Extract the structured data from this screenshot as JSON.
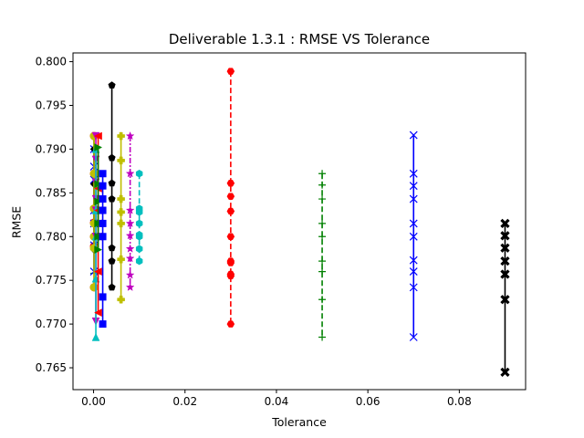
{
  "chart_data": {
    "type": "line",
    "title": "Deliverable 1.3.1 : RMSE VS Tolerance",
    "xlabel": "Tolerance",
    "ylabel": "RMSE",
    "xlim": [
      -0.0045,
      0.0945
    ],
    "ylim": [
      0.7625,
      0.801
    ],
    "xticks": [
      "0.00",
      "0.02",
      "0.04",
      "0.06",
      "0.08"
    ],
    "xtick_values": [
      0.0,
      0.02,
      0.04,
      0.06,
      0.08
    ],
    "yticks": [
      "0.765",
      "0.770",
      "0.775",
      "0.780",
      "0.785",
      "0.790",
      "0.795",
      "0.800"
    ],
    "ytick_values": [
      0.765,
      0.77,
      0.775,
      0.78,
      0.785,
      0.79,
      0.795,
      0.8
    ],
    "grid": false,
    "series": [
      {
        "x": 0.0001,
        "color": "#ff0000",
        "marker": "o",
        "dash": "",
        "values": [
          0.7915,
          0.7872,
          0.7832,
          0.7816,
          0.78,
          0.7789,
          0.7742
        ]
      },
      {
        "x": 0.0001,
        "color": "#008000",
        "marker": "+",
        "dash": "",
        "values": [
          0.7915,
          0.783,
          0.7815,
          0.78,
          0.7787,
          0.7758
        ]
      },
      {
        "x": 0.0001,
        "color": "#0000ff",
        "marker": "x",
        "dash": "",
        "values": [
          0.79,
          0.788,
          0.7865,
          0.783,
          0.7815,
          0.779,
          0.776
        ]
      },
      {
        "x": 0.0001,
        "color": "#000000",
        "marker": "D",
        "dash": "",
        "values": [
          0.79,
          0.786,
          0.783,
          0.78,
          0.7785
        ]
      },
      {
        "x": 0.0001,
        "color": "#bfbf00",
        "marker": "o",
        "dash": "",
        "values": [
          0.7915,
          0.7872,
          0.7832,
          0.7815,
          0.78,
          0.7787,
          0.7742
        ]
      },
      {
        "x": 0.0005,
        "color": "#bf00bf",
        "marker": "v",
        "dash": "",
        "values": [
          0.7915,
          0.7888,
          0.7862,
          0.7843,
          0.783,
          0.78,
          0.7703
        ]
      },
      {
        "x": 0.0005,
        "color": "#00bfbf",
        "marker": "^",
        "dash": "",
        "values": [
          0.79,
          0.783,
          0.78,
          0.7752,
          0.7685
        ]
      },
      {
        "x": 0.001,
        "color": "#ff0000",
        "marker": "<",
        "dash": "",
        "values": [
          0.7915,
          0.7855,
          0.783,
          0.7815,
          0.78,
          0.776,
          0.7713
        ]
      },
      {
        "x": 0.001,
        "color": "#008000",
        "marker": ">",
        "dash": "",
        "values": [
          0.7902,
          0.786,
          0.784,
          0.7815,
          0.78,
          0.7785
        ]
      },
      {
        "x": 0.002,
        "color": "#0000ff",
        "marker": "s",
        "dash": "",
        "values": [
          0.7872,
          0.7858,
          0.7843,
          0.783,
          0.7815,
          0.78,
          0.7731,
          0.77
        ]
      },
      {
        "x": 0.004,
        "color": "#000000",
        "marker": "p",
        "dash": "",
        "values": [
          0.7973,
          0.789,
          0.7861,
          0.7843,
          0.7787,
          0.7772,
          0.7742
        ]
      },
      {
        "x": 0.006,
        "color": "#bfbf00",
        "marker": "P",
        "dash": "",
        "values": [
          0.7915,
          0.7887,
          0.7843,
          0.7828,
          0.7815,
          0.7774,
          0.7728
        ]
      },
      {
        "x": 0.008,
        "color": "#bf00bf",
        "marker": "*",
        "dash": "-.",
        "values": [
          0.7915,
          0.7872,
          0.783,
          0.7815,
          0.7801,
          0.7786,
          0.7775,
          0.7756,
          0.7742
        ]
      },
      {
        "x": 0.01,
        "color": "#00bfbf",
        "marker": "h",
        "dash": "--",
        "values": [
          0.7872,
          0.7832,
          0.7828,
          0.7815,
          0.7802,
          0.78,
          0.7786,
          0.7772
        ]
      },
      {
        "x": 0.03,
        "color": "#ff0000",
        "marker": "H",
        "dash": "--",
        "values": [
          0.7989,
          0.7861,
          0.7846,
          0.7829,
          0.78,
          0.7772,
          0.777,
          0.7757,
          0.7755,
          0.77
        ]
      },
      {
        "x": 0.05,
        "color": "#008000",
        "marker": "+",
        "dash": "--",
        "values": [
          0.7872,
          0.7859,
          0.7843,
          0.7815,
          0.78,
          0.7772,
          0.776,
          0.7728,
          0.7685
        ]
      },
      {
        "x": 0.07,
        "color": "#0000ff",
        "marker": "x",
        "dash": "",
        "values": [
          0.7916,
          0.7872,
          0.7858,
          0.7843,
          0.7815,
          0.78,
          0.7773,
          0.776,
          0.7742,
          0.7685
        ]
      },
      {
        "x": 0.09,
        "color": "#000000",
        "marker": "X",
        "dash": "",
        "values": [
          0.7815,
          0.7801,
          0.7787,
          0.7772,
          0.7757,
          0.7728,
          0.7645
        ]
      }
    ]
  }
}
